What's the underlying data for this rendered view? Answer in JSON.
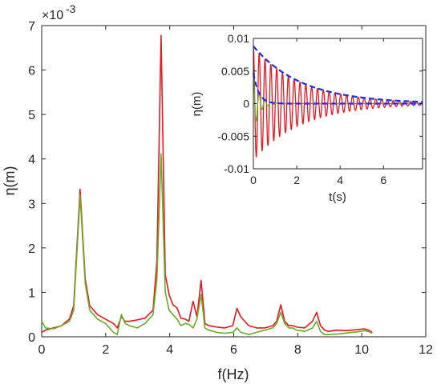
{
  "chart_data": [
    {
      "type": "line",
      "role": "main",
      "xlabel": "f(Hz)",
      "ylabel": "η(m)",
      "exponent_label": "×10",
      "exponent_power": "-3",
      "xlim": [
        0,
        12
      ],
      "ylim": [
        0,
        7
      ],
      "xticks": [
        "0",
        "2",
        "4",
        "6",
        "8",
        "10",
        "12"
      ],
      "yticks": [
        "0",
        "1",
        "2",
        "3",
        "4",
        "5",
        "6",
        "7"
      ],
      "grid": false,
      "series": [
        {
          "color": "#e6191f",
          "x": [
            0,
            0.12,
            0.37,
            0.62,
            0.87,
            1.0,
            1.2,
            1.36,
            1.5,
            1.74,
            1.99,
            2.24,
            2.36,
            2.49,
            2.61,
            2.74,
            2.98,
            3.23,
            3.48,
            3.6,
            3.73,
            3.86,
            3.98,
            4.1,
            4.23,
            4.35,
            4.48,
            4.6,
            4.73,
            4.85,
            4.98,
            5.1,
            5.22,
            5.47,
            5.72,
            5.97,
            6.1,
            6.22,
            6.47,
            6.72,
            6.97,
            7.22,
            7.34,
            7.47,
            7.59,
            7.72,
            7.84,
            7.97,
            8.22,
            8.46,
            8.59,
            8.71,
            8.84,
            8.96,
            9.21,
            9.46,
            9.71,
            9.96,
            10.08,
            10.21,
            10.33
          ],
          "y": [
            0.1,
            0.15,
            0.2,
            0.25,
            0.4,
            0.7,
            3.32,
            1.3,
            0.7,
            0.5,
            0.4,
            0.3,
            0.2,
            0.45,
            0.35,
            0.35,
            0.38,
            0.42,
            0.6,
            1.7,
            6.78,
            1.4,
            0.95,
            0.72,
            0.65,
            0.42,
            0.4,
            0.35,
            0.8,
            0.45,
            1.27,
            0.3,
            0.25,
            0.22,
            0.2,
            0.25,
            0.64,
            0.45,
            0.25,
            0.2,
            0.2,
            0.25,
            0.35,
            0.72,
            0.35,
            0.25,
            0.25,
            0.22,
            0.2,
            0.35,
            0.55,
            0.25,
            0.15,
            0.12,
            0.15,
            0.14,
            0.15,
            0.17,
            0.18,
            0.15,
            0.1
          ]
        },
        {
          "color": "#6aab27",
          "x": [
            0,
            0.12,
            0.37,
            0.62,
            0.87,
            1.0,
            1.2,
            1.36,
            1.5,
            1.74,
            1.99,
            2.24,
            2.36,
            2.49,
            2.61,
            2.74,
            2.98,
            3.23,
            3.48,
            3.6,
            3.73,
            3.86,
            3.98,
            4.1,
            4.23,
            4.35,
            4.48,
            4.6,
            4.73,
            4.85,
            4.98,
            5.1,
            5.22,
            5.47,
            5.72,
            5.97,
            6.1,
            6.22,
            6.47,
            6.72,
            6.97,
            7.22,
            7.34,
            7.47,
            7.59,
            7.72,
            7.84,
            7.97,
            8.22,
            8.46,
            8.59,
            8.71,
            8.84,
            8.96,
            9.21,
            9.46,
            9.71,
            9.96,
            10.08,
            10.21,
            10.33
          ],
          "y": [
            0.35,
            0.2,
            0.18,
            0.25,
            0.35,
            0.6,
            3.18,
            1.2,
            0.6,
            0.4,
            0.3,
            0.1,
            0.05,
            0.5,
            0.3,
            0.25,
            0.2,
            0.3,
            0.5,
            1.3,
            4.12,
            1.0,
            0.6,
            0.5,
            0.4,
            0.25,
            0.3,
            0.28,
            0.2,
            0.4,
            0.95,
            0.2,
            0.15,
            0.1,
            0.08,
            0.1,
            0.2,
            0.1,
            0.05,
            0.1,
            0.15,
            0.2,
            0.3,
            0.55,
            0.3,
            0.2,
            0.2,
            0.15,
            0.12,
            0.2,
            0.35,
            0.12,
            0.05,
            0.05,
            0.06,
            0.08,
            0.1,
            0.12,
            0.14,
            0.12,
            0.08
          ]
        }
      ]
    },
    {
      "type": "line",
      "role": "inset",
      "xlabel": "t(s)",
      "ylabel": "η(m)",
      "xlim": [
        0,
        7.8
      ],
      "ylim": [
        -0.01,
        0.01
      ],
      "xticks": [
        "0",
        "2",
        "4",
        "6"
      ],
      "yticks": [
        "-0.01",
        "-0.005",
        "0",
        "0.005",
        "0.01"
      ],
      "grid": false,
      "series": [
        {
          "color": "#e6191f",
          "kind": "damped-oscillation",
          "amplitude": 0.0087,
          "decay_rate": 0.45,
          "frequency_hz": 3.72,
          "t_end": 7.8
        },
        {
          "color": "#6aab27",
          "kind": "damped-oscillation",
          "amplitude": 0.0045,
          "decay_rate": 4.0,
          "frequency_hz": 3.72,
          "t_end": 7.8
        },
        {
          "color": "#1a30e6",
          "kind": "envelope",
          "style": "dashed",
          "amplitude": 0.0088,
          "decay_rate": 0.45,
          "offset": 0.0,
          "t_end": 7.8
        },
        {
          "color": "#1a30e6",
          "kind": "envelope",
          "style": "dashed",
          "amplitude": 0.0047,
          "decay_rate": 4.0,
          "offset": 0.0,
          "t_end": 7.8
        }
      ]
    }
  ]
}
